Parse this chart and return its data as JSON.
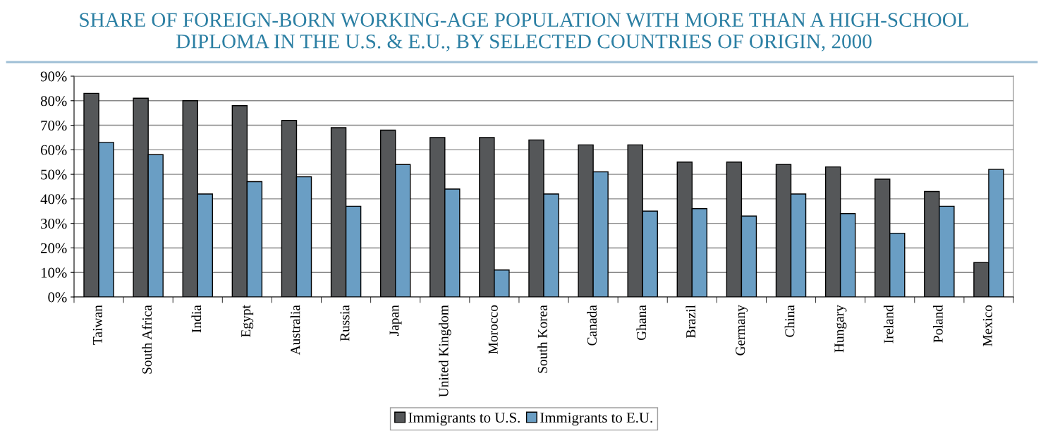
{
  "chart_data": {
    "type": "bar",
    "title": "SHARE OF FOREIGN-BORN WORKING-AGE POPULATION WITH MORE THAN A HIGH-SCHOOL\nDIPLOMA IN THE U.S. & E.U., BY SELECTED COUNTRIES OF ORIGIN, 2000",
    "categories": [
      "Taiwan",
      "South Africa",
      "India",
      "Egypt",
      "Australia",
      "Russia",
      "Japan",
      "United Kingdom",
      "Morocco",
      "South Korea",
      "Canada",
      "Ghana",
      "Brazil",
      "Germany",
      "China",
      "Hungary",
      "Ireland",
      "Poland",
      "Mexico"
    ],
    "series": [
      {
        "name": "Immigrants to U.S.",
        "color": "#555759",
        "values": [
          83,
          81,
          80,
          78,
          72,
          69,
          68,
          65,
          65,
          64,
          62,
          62,
          55,
          55,
          54,
          53,
          48,
          43,
          14
        ]
      },
      {
        "name": "Immigrants to E.U.",
        "color": "#6a9ec4",
        "values": [
          63,
          58,
          42,
          47,
          49,
          37,
          54,
          44,
          11,
          42,
          51,
          35,
          36,
          33,
          42,
          34,
          26,
          37,
          52
        ]
      }
    ],
    "ylim": [
      0,
      90
    ],
    "yticks": [
      {
        "value": 0,
        "label": "0%"
      },
      {
        "value": 10,
        "label": "10%"
      },
      {
        "value": 20,
        "label": "20%"
      },
      {
        "value": 30,
        "label": "30%"
      },
      {
        "value": 40,
        "label": "40%"
      },
      {
        "value": 50,
        "label": "50%"
      },
      {
        "value": 60,
        "label": "60%"
      },
      {
        "value": 70,
        "label": "70%"
      },
      {
        "value": 80,
        "label": "80%"
      },
      {
        "value": 90,
        "label": "90%"
      }
    ],
    "grid": "y",
    "legend": "bottom"
  }
}
